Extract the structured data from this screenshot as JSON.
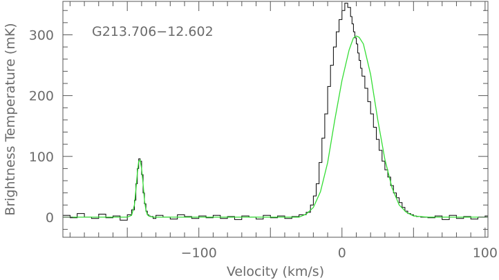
{
  "chart_data": {
    "type": "line",
    "title": "",
    "annotation": "G213.706−12.602",
    "xlabel": "Velocity (km/s)",
    "ylabel": "Brightness Temperature (mK)",
    "xlim": [
      -195,
      102
    ],
    "ylim": [
      -33,
      355
    ],
    "xticks": [
      -100,
      0,
      100
    ],
    "xtick_labels": [
      "−100",
      "0",
      "100"
    ],
    "yticks": [
      0,
      100,
      200,
      300
    ],
    "ytick_labels": [
      "0",
      "100",
      "200",
      "300"
    ],
    "grid": false,
    "series": [
      {
        "style": "step",
        "color": "#000000",
        "x": [
          -195,
          -190,
          -185,
          -180,
          -175,
          -170,
          -165,
          -160,
          -155,
          -150,
          -147,
          -145,
          -144,
          -143,
          -142,
          -141,
          -140,
          -139,
          -138,
          -137,
          -136,
          -135,
          -134,
          -132,
          -130,
          -125,
          -120,
          -115,
          -110,
          -105,
          -100,
          -95,
          -90,
          -85,
          -80,
          -75,
          -70,
          -65,
          -60,
          -55,
          -50,
          -45,
          -40,
          -35,
          -30,
          -25,
          -22,
          -20,
          -18,
          -16,
          -14,
          -12,
          -10,
          -8,
          -6,
          -4,
          -2,
          0,
          2,
          4,
          6,
          7,
          8,
          9,
          10,
          11,
          12,
          13,
          14,
          16,
          18,
          20,
          22,
          24,
          26,
          28,
          30,
          32,
          34,
          36,
          38,
          40,
          42,
          44,
          46,
          48,
          50,
          52,
          55,
          60,
          65,
          70,
          75,
          80,
          85,
          90,
          95,
          100,
          102
        ],
        "y": [
          3,
          -1,
          6,
          0,
          -2,
          5,
          -1,
          2,
          -5,
          4,
          12,
          28,
          55,
          80,
          96,
          92,
          70,
          40,
          22,
          10,
          4,
          2,
          1,
          -2,
          3,
          0,
          -3,
          4,
          1,
          -2,
          2,
          -1,
          3,
          -2,
          1,
          -4,
          2,
          0,
          -3,
          3,
          -1,
          2,
          -2,
          1,
          4,
          8,
          20,
          35,
          55,
          90,
          130,
          170,
          215,
          250,
          280,
          305,
          325,
          340,
          352,
          345,
          330,
          318,
          305,
          295,
          285,
          270,
          258,
          245,
          232,
          212,
          190,
          170,
          148,
          128,
          110,
          92,
          78,
          66,
          52,
          40,
          32,
          24,
          16,
          10,
          6,
          4,
          2,
          1,
          0,
          -1,
          2,
          -4,
          3,
          -2,
          1,
          -3,
          0,
          2,
          -1
        ]
      },
      {
        "style": "line",
        "color": "#33dd33",
        "x": [
          -195,
          -180,
          -160,
          -150,
          -147,
          -145,
          -144,
          -143,
          -142,
          -141,
          -140,
          -139,
          -138,
          -137,
          -136,
          -135,
          -134,
          -132,
          -130,
          -110,
          -80,
          -50,
          -30,
          -25,
          -20,
          -15,
          -10,
          -5,
          0,
          5,
          8,
          10,
          12,
          15,
          20,
          25,
          30,
          35,
          40,
          45,
          50,
          55,
          60,
          80,
          102
        ],
        "y": [
          0,
          0,
          0,
          0,
          3,
          20,
          45,
          72,
          92,
          94,
          80,
          55,
          28,
          12,
          4,
          2,
          1,
          0,
          0,
          0,
          0,
          0,
          0,
          5,
          16,
          42,
          90,
          160,
          225,
          275,
          295,
          298,
          296,
          285,
          235,
          160,
          95,
          48,
          20,
          8,
          2,
          1,
          0,
          0,
          0
        ]
      }
    ]
  }
}
